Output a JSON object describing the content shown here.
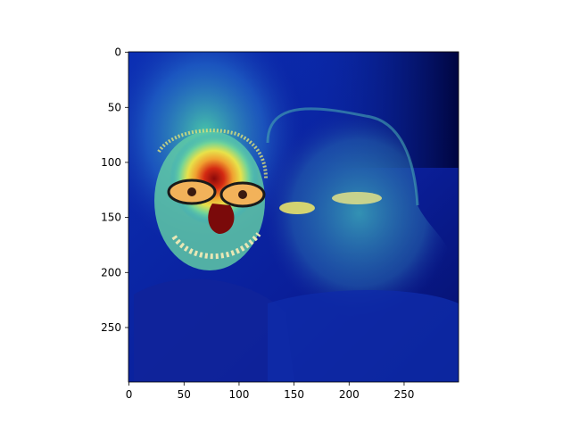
{
  "image": {
    "description_icon": "heatmap-overlay-photo-icon",
    "colormap": "jet",
    "colors": {
      "background": "#ffffff",
      "axis": "#000000",
      "cold": "#000a80",
      "mid": "#21b5b0",
      "warm": "#f2e33a",
      "hot": "#c81a10"
    }
  },
  "axes": {
    "x_ticks": [
      "0",
      "50",
      "100",
      "150",
      "200",
      "250"
    ],
    "y_ticks": [
      "0",
      "50",
      "100",
      "150",
      "200",
      "250"
    ],
    "x_tick_values": [
      0,
      50,
      100,
      150,
      200,
      250
    ],
    "y_tick_values": [
      0,
      50,
      100,
      150,
      200,
      250
    ],
    "xlim": [
      -0.5,
      299.5
    ],
    "ylim": [
      299.5,
      -0.5
    ],
    "origin": "upper"
  }
}
